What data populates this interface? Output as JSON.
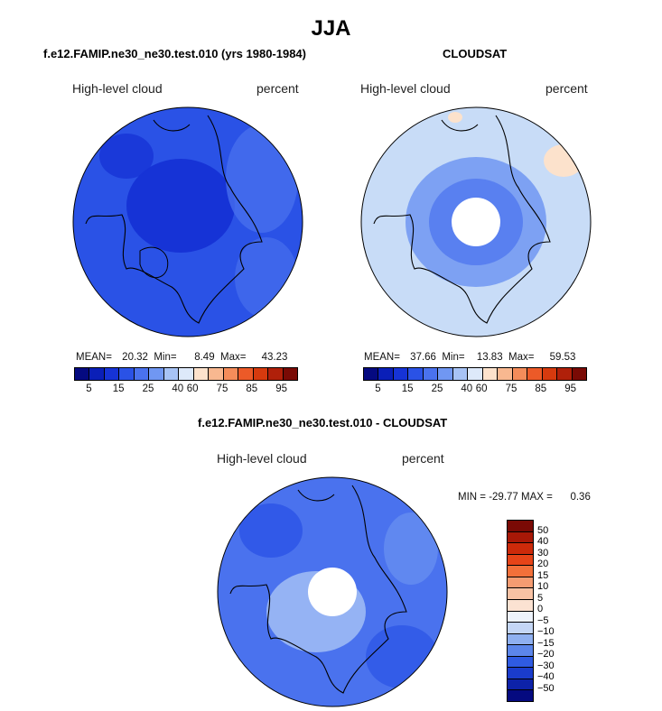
{
  "figure_title": "JJA",
  "panels": [
    {
      "title": "f.e12.FAMIP.ne30_ne30.test.010 (yrs 1980-1984)",
      "variable": "High-level cloud",
      "units": "percent",
      "stats": {
        "mean_label": "MEAN=",
        "mean": "20.32",
        "min_label": "Min=",
        "min": "8.49",
        "max_label": "Max=",
        "max": "43.23"
      },
      "colorbar_ticks": [
        "5",
        "15",
        "25",
        "40",
        "60",
        "75",
        "85",
        "95"
      ]
    },
    {
      "title": "CLOUDSAT",
      "variable": "High-level cloud",
      "units": "percent",
      "stats": {
        "mean_label": "MEAN=",
        "mean": "37.66",
        "min_label": "Min=",
        "min": "13.83",
        "max_label": "Max=",
        "max": "59.53"
      },
      "colorbar_ticks": [
        "5",
        "15",
        "25",
        "40",
        "60",
        "75",
        "85",
        "95"
      ]
    }
  ],
  "diff_panel": {
    "title": "f.e12.FAMIP.ne30_ne30.test.010 - CLOUDSAT",
    "variable": "High-level cloud",
    "units": "percent",
    "min_label": "MIN =",
    "min": "-29.77",
    "max_label": "MAX =",
    "max": "0.36",
    "colorbar_ticks": [
      "50",
      "40",
      "30",
      "20",
      "15",
      "10",
      "5",
      "0",
      "−5",
      "−10",
      "−15",
      "−20",
      "−30",
      "−40",
      "−50"
    ]
  },
  "colors": {
    "seq_scale": [
      "#050a80",
      "#0a1fb8",
      "#1633d6",
      "#2a52e6",
      "#4a72ee",
      "#7097f2",
      "#a7c3f5",
      "#dde9fa",
      "#fce2cc",
      "#f8b890",
      "#f48c5a",
      "#ec5a28",
      "#d63a0e",
      "#b0200a",
      "#7a0a05"
    ],
    "diff_scale": [
      "#7a0a05",
      "#a81807",
      "#cc2a0a",
      "#e64418",
      "#f2703a",
      "#f59c72",
      "#f8c2a4",
      "#fbe2d2",
      "#eef3fb",
      "#c4d6f5",
      "#8fb0f0",
      "#5c86ea",
      "#2f5be2",
      "#1a3ccc",
      "#0d22a8",
      "#050a80"
    ],
    "model_field": "#2a52e6",
    "model_pole": "#1633d6",
    "obs_field": "#c8dcf7",
    "obs_ring": "#7097f2",
    "diff_field": "#4a72ee",
    "diff_light": "#a7c3f5"
  }
}
